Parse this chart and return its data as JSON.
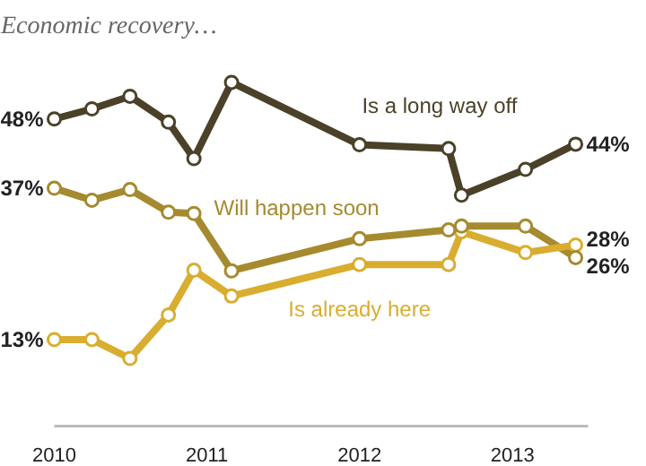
{
  "chart_data": {
    "type": "line",
    "title": "Economic recovery…",
    "x": [
      "2010-01",
      "2010-04",
      "2010-07",
      "2010-10",
      "2010-12",
      "2011-03",
      "2012-01",
      "2012-08",
      "2012-09",
      "2013-02",
      "2013-06"
    ],
    "series": [
      {
        "name": "Is a long way off",
        "color": "#4a4128",
        "values": [
          48,
          49.6,
          51.6,
          47.5,
          41.7,
          53.8,
          43.9,
          43.3,
          35.9,
          40,
          44
        ],
        "value_labels": [
          "48%",
          null,
          null,
          null,
          null,
          null,
          null,
          null,
          null,
          null,
          "44%"
        ]
      },
      {
        "name": "Will happen soon",
        "color": "#a58a2f",
        "values": [
          37,
          35.1,
          36.8,
          33.2,
          33,
          23.9,
          29,
          30.4,
          31,
          31,
          26
        ],
        "value_labels": [
          "37%",
          null,
          null,
          null,
          null,
          null,
          null,
          null,
          null,
          null,
          "26%"
        ]
      },
      {
        "name": "Is already here",
        "color": "#d9ad30",
        "values": [
          13,
          13,
          10,
          16.9,
          24,
          19.9,
          24.9,
          24.9,
          30.1,
          26.8,
          28
        ],
        "value_labels": [
          "13%",
          null,
          null,
          null,
          null,
          null,
          null,
          null,
          null,
          null,
          "28%"
        ]
      }
    ],
    "xlim": [
      "2010-01",
      "2013-07"
    ],
    "xticks": [
      "2010",
      "2011",
      "2012",
      "2013"
    ],
    "marker": "circle",
    "line_style": "solid"
  }
}
